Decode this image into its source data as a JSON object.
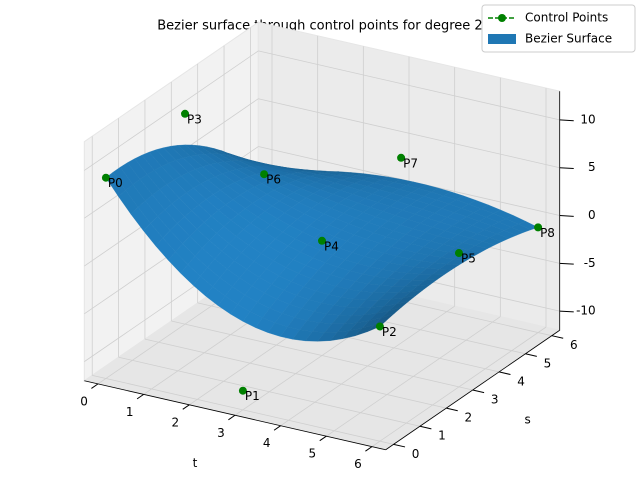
{
  "chart_data": {
    "type": "surface3d",
    "title": "Bezier surface through control points for degree 2",
    "xlabel": "t",
    "ylabel": "s",
    "xlim": [
      -0.3,
      6.3
    ],
    "ylim": [
      -0.3,
      6.3
    ],
    "zlim": [
      -12,
      13
    ],
    "xticks": [
      0,
      1,
      2,
      3,
      4,
      5,
      6
    ],
    "yticks": [
      0,
      1,
      2,
      3,
      4,
      5,
      6
    ],
    "zticks": [
      -10,
      -5,
      0,
      5,
      10
    ],
    "grid": true,
    "legend": "upper right",
    "series": [
      {
        "name": "Control Points",
        "color": "green",
        "labels": [
          "P0",
          "P1",
          "P2",
          "P3",
          "P4",
          "P5",
          "P6",
          "P7",
          "P8"
        ],
        "x": [
          0,
          3,
          6,
          0,
          3,
          6,
          0,
          3,
          6
        ],
        "y": [
          0,
          0,
          0,
          3,
          3,
          3,
          6,
          6,
          6
        ],
        "z": [
          9,
          -10,
          0,
          10,
          0,
          2,
          -2,
          3,
          -1
        ]
      },
      {
        "name": "Bezier Surface",
        "color": "#1f77b4"
      }
    ]
  }
}
